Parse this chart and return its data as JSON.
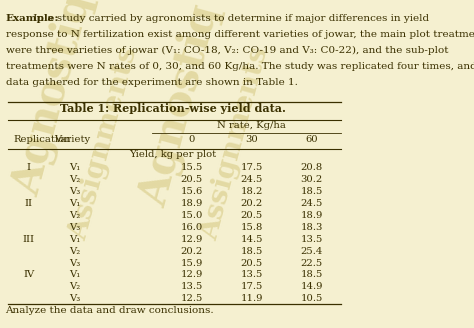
{
  "bg_color": "#f5f0d0",
  "title_text": "Table 1: Replication-wise yield data.",
  "example_text": "Example: In a study carried by agronomists to determine if major differences in yield\nresponse to N fertilization exist among different varieties of jowar, the main plot treatments\nwere three varieties of jowar (V₁: CO-18, V₂: CO-19 and V₃: C0-22), and the sub-plot\ntreatments were N rates of 0, 30, and 60 Kg/ha. The study was replicated four times, and the\ndata gathered for the experiment are shown in Table 1.",
  "footer_text": "Analyze the data and draw conclusions.",
  "col_headers": [
    "Replication",
    "Variety",
    "0",
    "30",
    "60"
  ],
  "nrate_label": "N rate, Kg/ha",
  "yield_label": "Yield, kg per plot",
  "rows": [
    [
      "I",
      "V₁",
      "15.5",
      "17.5",
      "20.8"
    ],
    [
      "",
      "V₂",
      "20.5",
      "24.5",
      "30.2"
    ],
    [
      "",
      "V₃",
      "15.6",
      "18.2",
      "18.5"
    ],
    [
      "II",
      "V₁",
      "18.9",
      "20.2",
      "24.5"
    ],
    [
      "",
      "V₂",
      "15.0",
      "20.5",
      "18.9"
    ],
    [
      "",
      "V₃",
      "16.0",
      "15.8",
      "18.3"
    ],
    [
      "III",
      "V₁",
      "12.9",
      "14.5",
      "13.5"
    ],
    [
      "",
      "V₂",
      "20.2",
      "18.5",
      "25.4"
    ],
    [
      "",
      "V₃",
      "15.9",
      "20.5",
      "22.5"
    ],
    [
      "IV",
      "V₁",
      "12.9",
      "13.5",
      "18.5"
    ],
    [
      "",
      "V₂",
      "13.5",
      "17.5",
      "14.9"
    ],
    [
      "",
      "V₃",
      "12.5",
      "11.9",
      "10.5"
    ]
  ],
  "text_color": "#3a3000",
  "line_color": "#3a3000",
  "watermark_color": "#c8b860",
  "font_size_body": 7.5,
  "font_size_table": 7.2,
  "font_size_title": 8.0
}
